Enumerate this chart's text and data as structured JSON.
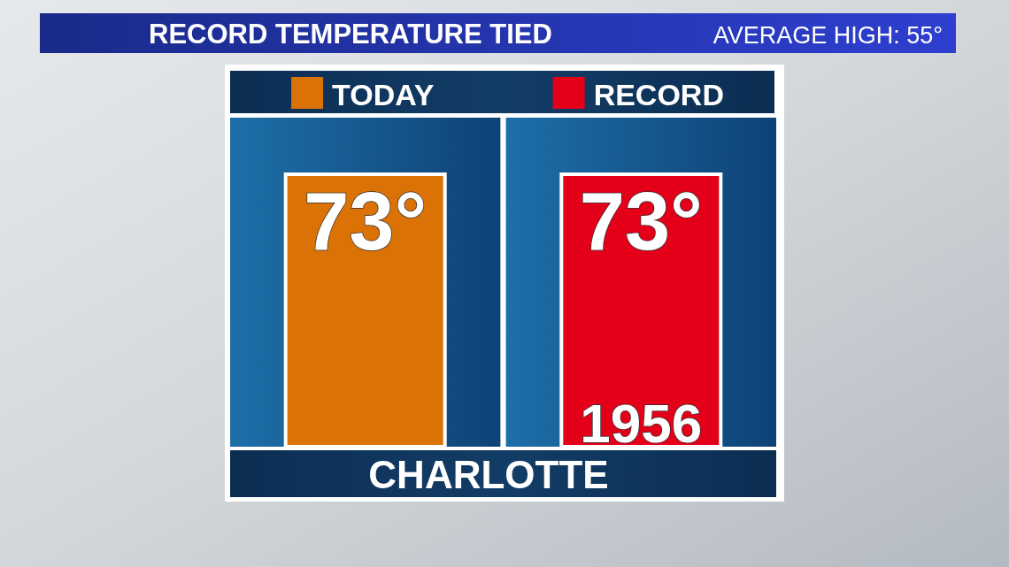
{
  "chart_data": {
    "type": "bar",
    "title": "RECORD TEMPERATURE TIED",
    "annotations": [
      "AVERAGE HIGH: 55°",
      "1956",
      "CHARLOTTE"
    ],
    "categories": [
      "TODAY",
      "RECORD"
    ],
    "values": [
      73,
      73
    ],
    "colors": [
      "#db7206",
      "#e5001a"
    ],
    "value_labels": [
      "73°",
      "73°"
    ]
  }
}
